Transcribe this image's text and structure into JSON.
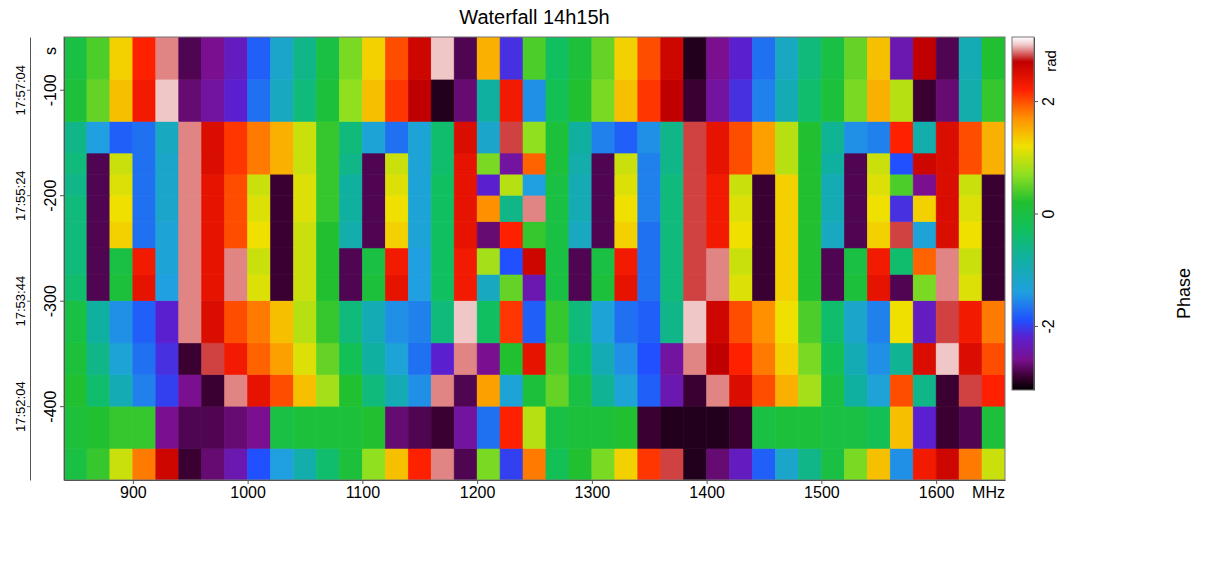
{
  "chart_data": {
    "type": "heatmap",
    "title": "Waterfall 14h15h",
    "x_label": "MHz",
    "y_label": "s",
    "xlim": [
      840,
      1660
    ],
    "xticks": [
      900,
      1000,
      1100,
      1200,
      1300,
      1400,
      1500,
      1600
    ],
    "ylim": [
      -470,
      -50
    ],
    "yticks": [
      -100,
      -200,
      -300,
      -400
    ],
    "y2lim": [
      -470,
      -50
    ],
    "y2ticks": [
      {
        "value": -100,
        "label": "17:57:04"
      },
      {
        "value": -200,
        "label": "17:55:24"
      },
      {
        "value": -300,
        "label": "17:53:44"
      },
      {
        "value": -400,
        "label": "17:52:04"
      }
    ],
    "colorbar": {
      "range": [
        -3.14,
        3.14
      ],
      "ticks": [
        -2,
        0,
        2
      ],
      "unit": "rad",
      "title": "Phase"
    },
    "x_bins": [
      840,
      860,
      880,
      900,
      920,
      940,
      960,
      980,
      1000,
      1020,
      1040,
      1060,
      1080,
      1100,
      1120,
      1140,
      1160,
      1180,
      1200,
      1220,
      1240,
      1260,
      1280,
      1300,
      1320,
      1340,
      1360,
      1380,
      1400,
      1420,
      1440,
      1460,
      1480,
      1500,
      1520,
      1540,
      1560,
      1580,
      1600,
      1620,
      1640,
      1660
    ],
    "y_bins": [
      -470,
      -440,
      -400,
      -370,
      -340,
      -300,
      -275,
      -250,
      -225,
      -200,
      -180,
      -160,
      -130,
      -90,
      -50
    ],
    "values": [
      [
        0.0,
        0.3,
        1.0,
        1.8,
        2.6,
        -2.9,
        -2.7,
        -2.4,
        -1.9,
        -1.4,
        -0.9,
        -0.4,
        0.1,
        0.7,
        1.4,
        2.2,
        2.9,
        -2.8,
        0.6,
        -2.0,
        1.8,
        -0.2,
        0.2,
        0.6,
        1.3,
        2.1,
        2.8,
        -3.0,
        -2.7,
        -2.3,
        -1.8,
        -1.2,
        -0.6,
        0.0,
        0.6,
        1.4,
        -1.5,
        2.3,
        2.6,
        1.8,
        1.0
      ],
      [
        0.1,
        0.2,
        0.3,
        0.3,
        -2.6,
        -2.8,
        -2.8,
        -2.7,
        -2.6,
        0.0,
        0.1,
        0.1,
        0.1,
        0.2,
        -2.7,
        -2.8,
        -2.9,
        -2.5,
        -1.7,
        2.2,
        0.9,
        0.0,
        0.1,
        0.1,
        0.2,
        -2.9,
        -3.0,
        -3.0,
        -3.0,
        -2.9,
        0.0,
        0.1,
        0.1,
        0.0,
        0.0,
        -0.2,
        1.4,
        -2.2,
        -2.9,
        -2.8,
        0.1
      ],
      [
        0.2,
        -0.4,
        -1.0,
        -1.6,
        -2.0,
        -2.6,
        -2.9,
        2.9,
        2.4,
        2.0,
        1.4,
        0.8,
        0.2,
        -0.5,
        -1.0,
        -1.5,
        2.9,
        -2.8,
        1.6,
        -1.3,
        0.1,
        0.5,
        0.0,
        -0.7,
        -1.3,
        -1.8,
        -2.4,
        -2.9,
        2.9,
        2.5,
        2.0,
        1.5,
        0.8,
        0.0,
        -0.8,
        -1.3,
        2.0,
        -0.6,
        -2.9,
        2.8,
        2.2
      ],
      [
        0.1,
        -0.6,
        -1.3,
        -1.7,
        -2.1,
        -2.9,
        2.8,
        2.3,
        1.9,
        1.6,
        1.1,
        0.5,
        -0.2,
        -0.8,
        -1.3,
        -1.7,
        -2.2,
        2.9,
        -2.6,
        0.2,
        2.4,
        0.4,
        -0.3,
        -1.0,
        -1.5,
        -1.9,
        -2.5,
        2.9,
        2.7,
        2.2,
        1.8,
        1.3,
        0.6,
        -0.2,
        -1.0,
        -1.5,
        -0.7,
        2.5,
        3.0,
        2.5,
        2.0
      ],
      [
        0.0,
        -0.8,
        -1.5,
        -1.8,
        -2.2,
        2.9,
        2.5,
        2.0,
        1.8,
        1.4,
        0.9,
        0.3,
        -0.5,
        -1.0,
        -1.5,
        -1.6,
        -0.5,
        3.0,
        -0.3,
        2.1,
        -1.8,
        0.3,
        -0.5,
        -1.3,
        -1.7,
        -1.8,
        -0.6,
        3.0,
        2.6,
        2.0,
        1.7,
        1.2,
        0.4,
        -0.4,
        -1.2,
        -1.6,
        1.2,
        -2.3,
        2.8,
        2.3,
        1.8
      ],
      [
        -0.4,
        -2.8,
        0.1,
        2.4,
        -1.4,
        2.9,
        2.4,
        2.9,
        1.1,
        -2.9,
        1.0,
        0.2,
        -2.8,
        0.1,
        2.4,
        -1.4,
        -0.3,
        2.3,
        -1.1,
        0.5,
        -2.4,
        0.0,
        -2.8,
        0.1,
        2.4,
        -1.7,
        -0.5,
        2.8,
        2.9,
        1.1,
        -2.9,
        1.3,
        0.2,
        -2.8,
        0.1,
        2.4,
        -2.8,
        0.6,
        2.9,
        1.1,
        -2.9
      ],
      [
        -0.5,
        -2.8,
        0.0,
        2.3,
        -1.3,
        2.9,
        2.4,
        2.9,
        1.0,
        -2.9,
        1.0,
        0.2,
        -2.8,
        0.0,
        2.3,
        -1.4,
        -0.3,
        2.3,
        0.8,
        -1.9,
        2.6,
        0.0,
        -2.8,
        0.0,
        2.3,
        -1.7,
        -0.5,
        2.8,
        2.9,
        1.0,
        -2.9,
        1.3,
        0.2,
        -2.8,
        0.0,
        2.3,
        -0.4,
        1.9,
        2.9,
        1.0,
        -2.9
      ],
      [
        -0.5,
        -2.8,
        1.3,
        -1.7,
        -1.3,
        2.9,
        2.4,
        2.0,
        1.2,
        -2.9,
        1.0,
        0.2,
        -0.9,
        -2.8,
        1.3,
        -1.3,
        -0.3,
        2.4,
        -2.7,
        2.2,
        0.3,
        0.0,
        -1.1,
        -2.8,
        1.3,
        -1.7,
        -0.5,
        2.8,
        2.3,
        1.2,
        -2.9,
        1.3,
        0.2,
        -1.1,
        -2.8,
        1.3,
        2.8,
        -1.3,
        2.5,
        1.2,
        -2.9
      ],
      [
        -0.5,
        -2.8,
        1.2,
        -1.7,
        -1.2,
        2.9,
        2.4,
        2.0,
        1.1,
        -2.9,
        1.1,
        0.3,
        -0.8,
        -2.8,
        1.2,
        -1.3,
        -0.3,
        2.4,
        1.7,
        -0.6,
        2.9,
        0.0,
        -1.0,
        -2.8,
        1.2,
        -1.6,
        -0.5,
        2.8,
        2.3,
        1.1,
        -2.9,
        1.3,
        0.2,
        -1.0,
        -2.8,
        1.2,
        -2.1,
        1.3,
        2.5,
        1.1,
        -2.9
      ],
      [
        -0.6,
        -2.8,
        1.1,
        -1.7,
        -1.2,
        2.9,
        2.4,
        2.0,
        1.0,
        -2.9,
        1.1,
        0.3,
        -0.8,
        -2.8,
        1.1,
        -1.3,
        -0.3,
        2.4,
        -2.2,
        0.9,
        -1.4,
        0.0,
        -1.0,
        -2.8,
        1.1,
        -1.6,
        -0.5,
        2.8,
        2.3,
        1.0,
        -2.9,
        1.3,
        0.2,
        -1.0,
        -2.8,
        1.1,
        0.4,
        -2.6,
        2.5,
        1.0,
        -2.9
      ],
      [
        -0.5,
        -2.8,
        1.0,
        -1.7,
        -1.2,
        2.9,
        2.5,
        2.1,
        1.8,
        1.5,
        1.0,
        0.3,
        -0.6,
        -2.8,
        1.0,
        -1.3,
        -0.4,
        2.4,
        0.6,
        -2.5,
        1.9,
        0.1,
        -0.9,
        -2.8,
        1.0,
        -1.6,
        -0.6,
        2.8,
        2.4,
        2.0,
        1.6,
        0.9,
        0.2,
        -0.8,
        -2.8,
        1.0,
        -1.9,
        2.6,
        2.5,
        2.0,
        1.5
      ],
      [
        -0.6,
        -1.4,
        -1.8,
        -1.7,
        -1.1,
        2.9,
        2.5,
        2.1,
        1.8,
        1.5,
        1.0,
        0.3,
        -0.5,
        -1.3,
        -1.7,
        -1.3,
        -0.4,
        2.5,
        -1.2,
        2.8,
        0.7,
        0.1,
        -0.8,
        -1.6,
        -1.8,
        -1.5,
        -0.6,
        2.8,
        2.4,
        2.0,
        1.6,
        0.9,
        0.2,
        -0.7,
        -1.5,
        -1.6,
        2.2,
        -0.9,
        2.5,
        2.0,
        1.5
      ],
      [
        0.1,
        0.5,
        1.4,
        2.3,
        3.0,
        -2.7,
        -2.5,
        -2.2,
        -1.7,
        -1.1,
        -0.5,
        0.1,
        0.7,
        1.4,
        2.1,
        2.7,
        -3.0,
        -2.7,
        -0.8,
        2.3,
        -1.5,
        -0.2,
        0.2,
        0.6,
        1.4,
        2.1,
        2.7,
        -2.9,
        -2.5,
        -2.1,
        -1.6,
        -1.0,
        -0.4,
        0.1,
        0.6,
        1.5,
        0.9,
        -2.9,
        -2.7,
        -0.9,
        0.3
      ],
      [
        0.0,
        0.4,
        1.3,
        2.2,
        2.9,
        -2.8,
        -2.6,
        -2.3,
        -1.8,
        -1.2,
        -0.6,
        0.0,
        0.6,
        1.3,
        2.0,
        2.6,
        3.0,
        -2.8,
        1.5,
        -2.1,
        0.4,
        -0.3,
        0.1,
        0.5,
        1.3,
        2.0,
        2.6,
        -3.0,
        -2.6,
        -2.2,
        -1.7,
        -1.1,
        -0.5,
        0.0,
        0.5,
        1.4,
        -2.4,
        2.7,
        -2.8,
        -1.0,
        0.2
      ]
    ]
  }
}
